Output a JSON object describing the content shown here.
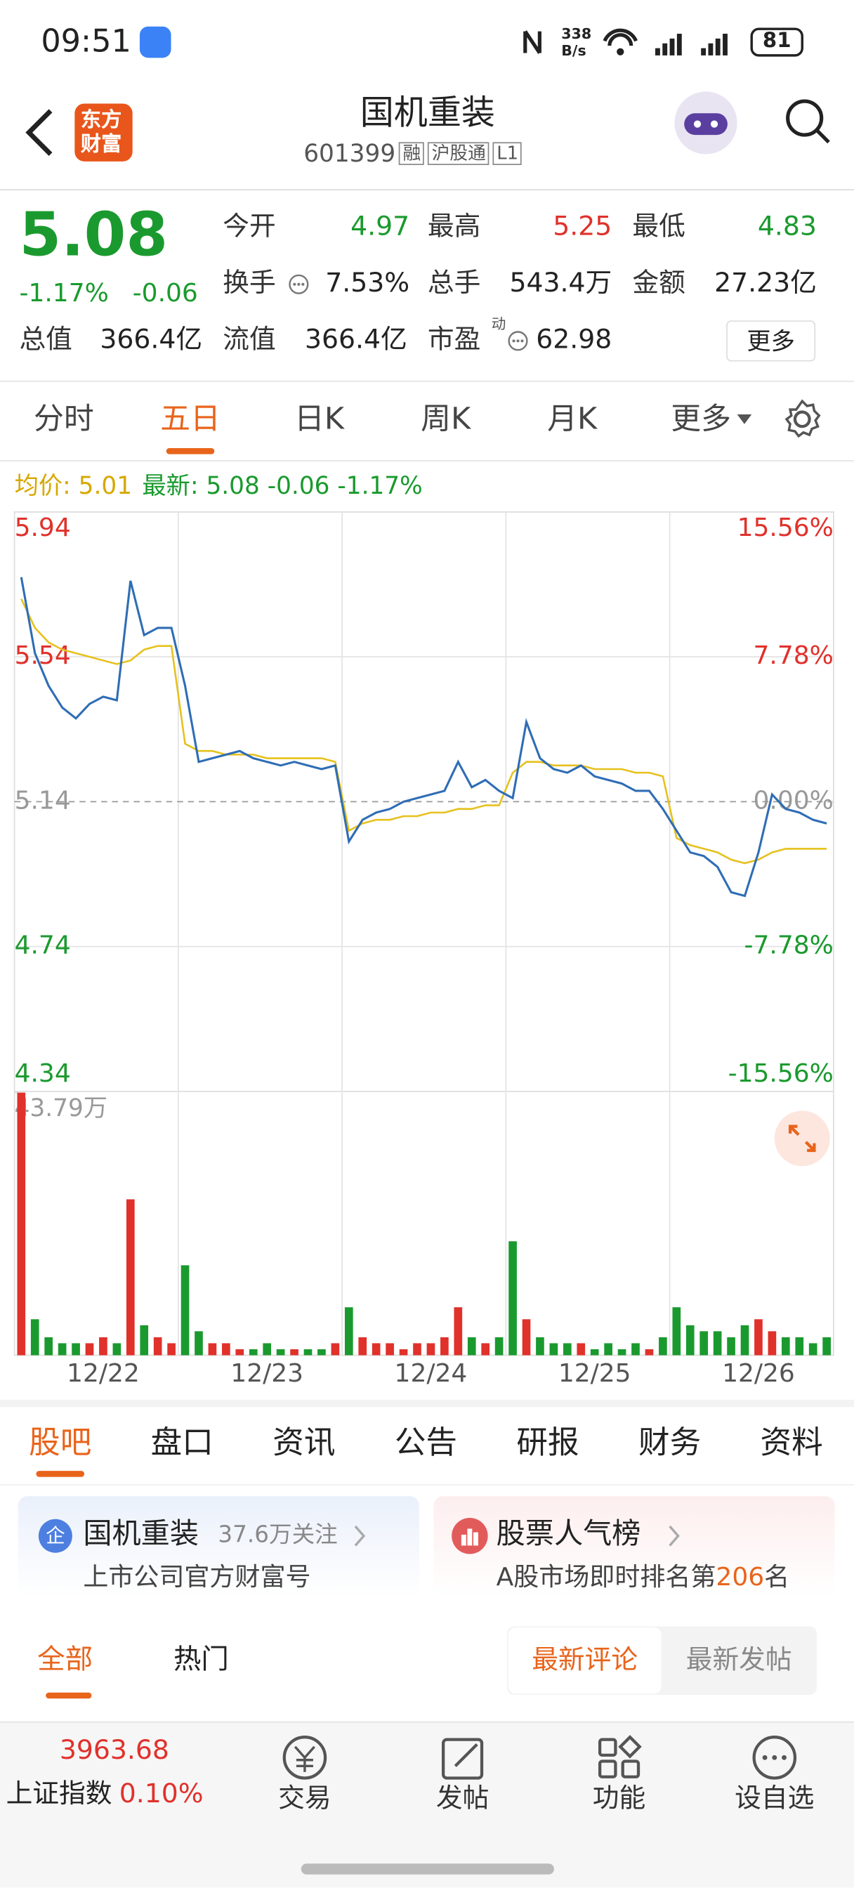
{
  "status": {
    "time": "09:51",
    "speed": "338",
    "speed_unit": "B/s",
    "battery": "81"
  },
  "header": {
    "logo": [
      "东方",
      "财富"
    ],
    "title": "国机重装",
    "code": "601399",
    "badges": [
      "融",
      "沪股通",
      "L1"
    ]
  },
  "quote": {
    "price": "5.08",
    "change_pct": "-1.17%",
    "change": "-0.06",
    "fields": [
      {
        "label": "今开",
        "value": "4.97"
      },
      {
        "label": "最高",
        "value": "5.25"
      },
      {
        "label": "最低",
        "value": "4.83"
      },
      {
        "label": "换手",
        "value": "7.53%"
      },
      {
        "label": "总手",
        "value": "543.4万"
      },
      {
        "label": "金额",
        "value": "27.23亿"
      },
      {
        "label": "总值",
        "value": "366.4亿"
      },
      {
        "label": "流值",
        "value": "366.4亿"
      },
      {
        "label": "市盈",
        "superscript": "动",
        "value": "62.98"
      }
    ],
    "more": "更多"
  },
  "chart_tabs": {
    "items": [
      "分时",
      "五日",
      "日K",
      "周K",
      "月K",
      "更多"
    ],
    "active": 1
  },
  "chart_data": {
    "type": "line",
    "legend": [
      "均价: 5.01",
      "最新: 5.08 -0.06 -1.17%"
    ],
    "categories": [
      null,
      null,
      null,
      null,
      null,
      null,
      "12/22",
      null,
      null,
      null,
      null,
      null,
      null,
      null,
      null,
      null,
      null,
      null,
      "12/23",
      null,
      null,
      null,
      null,
      null,
      null,
      null,
      null,
      null,
      null,
      null,
      "12/24",
      null,
      null,
      null,
      null,
      null,
      null,
      null,
      null,
      null,
      null,
      null,
      "12/25",
      null,
      null,
      null,
      null,
      null,
      null,
      null,
      null,
      null,
      null,
      null,
      "12/26",
      null,
      null,
      null,
      null,
      null
    ],
    "series": [
      {
        "color": "#2f6db5",
        "values": [
          5.76,
          5.55,
          5.46,
          5.4,
          5.37,
          5.41,
          5.43,
          5.42,
          5.75,
          5.6,
          5.62,
          5.62,
          5.46,
          5.25,
          5.26,
          5.27,
          5.28,
          5.26,
          5.25,
          5.24,
          5.25,
          5.24,
          5.23,
          5.24,
          5.03,
          5.09,
          5.11,
          5.12,
          5.14,
          5.15,
          5.16,
          5.17,
          5.25,
          5.18,
          5.2,
          5.17,
          5.15,
          5.36,
          5.26,
          5.23,
          5.22,
          5.24,
          5.21,
          5.2,
          5.19,
          5.17,
          5.17,
          5.12,
          5.06,
          5.0,
          4.99,
          4.96,
          4.89,
          4.88,
          5.0,
          5.16,
          5.12,
          5.11,
          5.09,
          5.08
        ]
      },
      {
        "color": "#e6c11d",
        "values": [
          5.7,
          5.62,
          5.58,
          5.56,
          5.55,
          5.54,
          5.53,
          5.52,
          5.53,
          5.56,
          5.57,
          5.57,
          5.3,
          5.28,
          5.28,
          5.27,
          5.27,
          5.27,
          5.26,
          5.26,
          5.26,
          5.26,
          5.26,
          5.25,
          5.06,
          5.08,
          5.09,
          5.09,
          5.1,
          5.1,
          5.11,
          5.11,
          5.12,
          5.12,
          5.13,
          5.13,
          5.22,
          5.25,
          5.25,
          5.24,
          5.24,
          5.24,
          5.23,
          5.23,
          5.23,
          5.22,
          5.22,
          5.21,
          5.04,
          5.02,
          5.01,
          5.0,
          4.98,
          4.97,
          4.98,
          5.0,
          5.01,
          5.01,
          5.01,
          5.01
        ]
      }
    ],
    "ylim": [
      4.34,
      5.94
    ],
    "yticks": [
      5.94,
      5.54,
      5.14,
      4.74,
      4.34
    ],
    "y2lim": [
      -15.56,
      15.56
    ],
    "y2ticks": [
      {
        "value": 15.56,
        "label": "15.56%"
      },
      {
        "value": 7.78,
        "label": "7.78%"
      },
      {
        "value": 0,
        "label": "0.00%"
      },
      {
        "value": -7.78,
        "label": "-7.78%"
      },
      {
        "value": -15.56,
        "label": "-15.56%"
      }
    ],
    "volume": {
      "lim": [
        0,
        43.79
      ],
      "tick": {
        "value": 43.79,
        "label": "43.79万"
      },
      "up_color": "#e0312b",
      "down_color": "#1a9a2e",
      "values": [
        43.79,
        6,
        3,
        2,
        2,
        2,
        3,
        2,
        26,
        5,
        3,
        2,
        15,
        4,
        2,
        2,
        1,
        1,
        2,
        1,
        1,
        1,
        1,
        2,
        8,
        3,
        2,
        2,
        1,
        2,
        2,
        3,
        8,
        3,
        2,
        3,
        19,
        6,
        3,
        2,
        2,
        2,
        1,
        2,
        1,
        2,
        1,
        3,
        8,
        5,
        4,
        4,
        3,
        5,
        6,
        4,
        3,
        3,
        2,
        3
      ]
    }
  },
  "section_tabs": {
    "items": [
      "股吧",
      "盘口",
      "资讯",
      "公告",
      "研报",
      "财务",
      "资料"
    ],
    "active": 0
  },
  "cards": [
    {
      "icon": "企",
      "title": "国机重装",
      "meta": "37.6万关注",
      "subtitle": "上市公司官方财富号"
    },
    {
      "title": "股票人气榜",
      "subtitle": [
        "A股市场即时排名第",
        "206",
        "名"
      ]
    }
  ],
  "filters": {
    "items": [
      "全部",
      "热门"
    ],
    "sort": [
      "最新评论",
      "最新发帖"
    ]
  },
  "bottom": {
    "index_value": "3963.68",
    "index_name": "上证指数",
    "index_pct": "0.10%",
    "nav": [
      "交易",
      "发帖",
      "功能",
      "设自选"
    ]
  }
}
